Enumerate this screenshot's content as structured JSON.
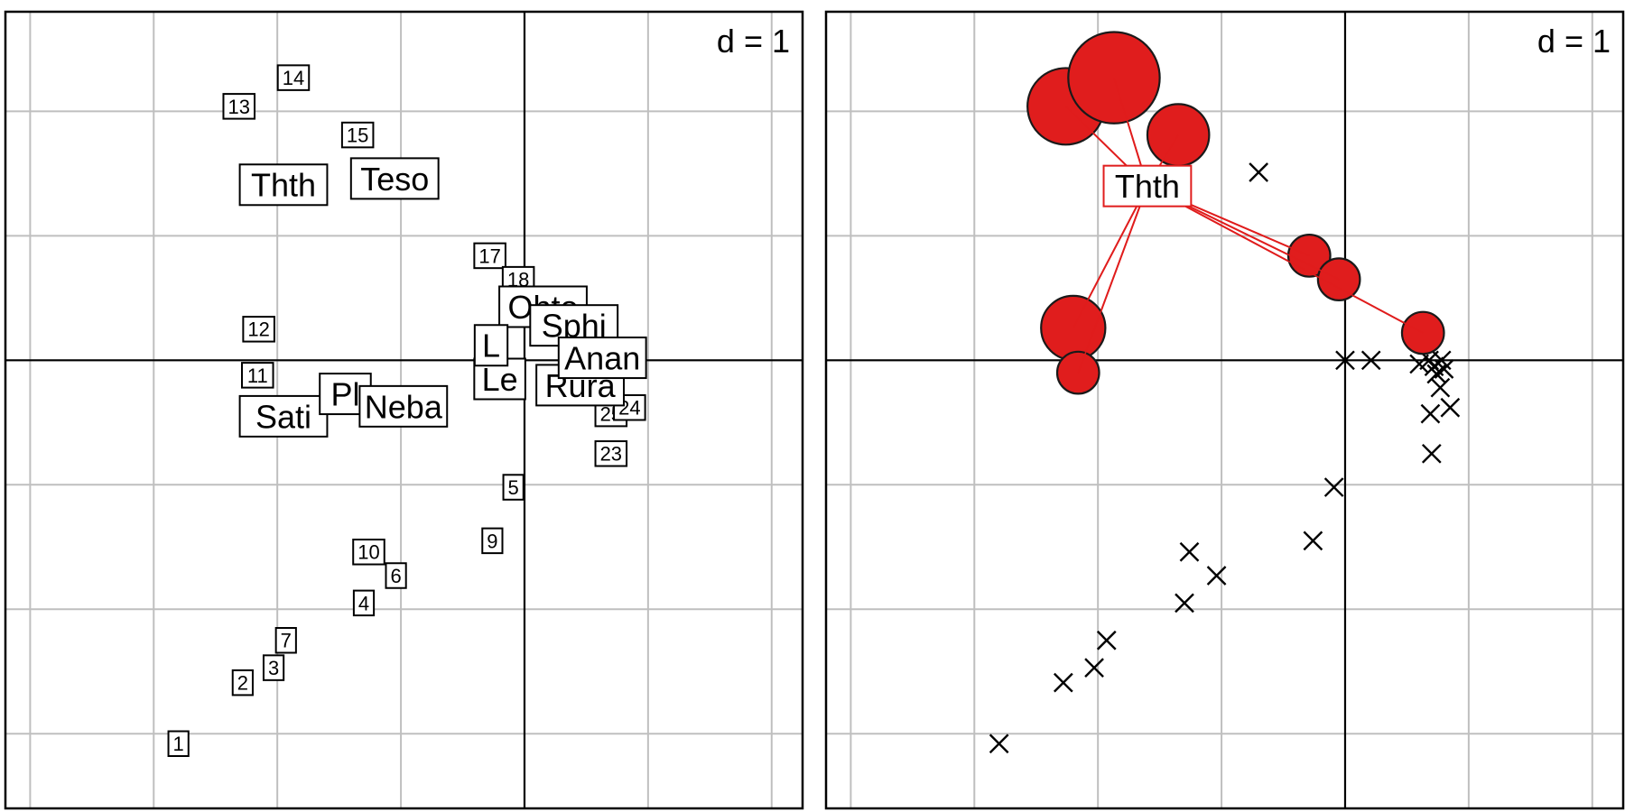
{
  "chart_data": [
    {
      "type": "scatter",
      "panel": "left",
      "scale_label": "d = 1",
      "grid": true,
      "axes_at_origin": true,
      "xlim": [
        -4.2,
        2.25
      ],
      "ylim": [
        -3.6,
        2.8
      ],
      "grid_step": 1,
      "sites": [
        {
          "label": "1",
          "x": -2.8,
          "y": -3.08
        },
        {
          "label": "2",
          "x": -2.28,
          "y": -2.59
        },
        {
          "label": "3",
          "x": -2.03,
          "y": -2.47
        },
        {
          "label": "7",
          "x": -1.93,
          "y": -2.25
        },
        {
          "label": "4",
          "x": -1.3,
          "y": -1.95
        },
        {
          "label": "6",
          "x": -1.04,
          "y": -1.73
        },
        {
          "label": "10",
          "x": -1.26,
          "y": -1.54
        },
        {
          "label": "9",
          "x": -0.26,
          "y": -1.45
        },
        {
          "label": "5",
          "x": -0.09,
          "y": -1.02
        },
        {
          "label": "11",
          "x": -2.16,
          "y": -0.12
        },
        {
          "label": "12",
          "x": -2.15,
          "y": 0.25
        },
        {
          "label": "13",
          "x": -2.31,
          "y": 2.04
        },
        {
          "label": "14",
          "x": -1.87,
          "y": 2.27
        },
        {
          "label": "15",
          "x": -1.35,
          "y": 1.81
        },
        {
          "label": "17",
          "x": -0.28,
          "y": 0.84
        },
        {
          "label": "18",
          "x": -0.05,
          "y": 0.65
        },
        {
          "label": "23",
          "x": 0.7,
          "y": -0.75
        },
        {
          "label": "25",
          "x": 0.7,
          "y": -0.43
        },
        {
          "label": "24",
          "x": 0.85,
          "y": -0.38
        }
      ],
      "species": [
        {
          "label": "Thth",
          "x": -1.95,
          "y": 1.41
        },
        {
          "label": "Teso",
          "x": -1.05,
          "y": 1.46
        },
        {
          "label": "Sati",
          "x": -1.95,
          "y": -0.45
        },
        {
          "label": "Pl",
          "x": -1.45,
          "y": -0.27
        },
        {
          "label": "Neba",
          "x": -0.98,
          "y": -0.37
        },
        {
          "label": "Ohto",
          "x": 0.15,
          "y": 0.43
        },
        {
          "label": "Sphi",
          "x": 0.4,
          "y": 0.28
        },
        {
          "label": "Le",
          "x": -0.2,
          "y": -0.15
        },
        {
          "label": "L",
          "x": -0.27,
          "y": 0.12
        },
        {
          "label": "Rura",
          "x": 0.45,
          "y": -0.2
        },
        {
          "label": "Anan",
          "x": 0.63,
          "y": 0.02
        }
      ]
    },
    {
      "type": "scatter",
      "panel": "right",
      "scale_label": "d = 1",
      "grid": true,
      "axes_at_origin": true,
      "xlim": [
        -4.2,
        2.25
      ],
      "ylim": [
        -3.6,
        2.8
      ],
      "grid_step": 1,
      "highlighted_species": "Thth",
      "centroid": {
        "label": "Thth",
        "x": -1.6,
        "y": 1.4
      },
      "occupied_sites": [
        {
          "x": -2.26,
          "y": 2.04,
          "r": 0.31
        },
        {
          "x": -1.87,
          "y": 2.27,
          "r": 0.37
        },
        {
          "x": -1.35,
          "y": 1.81,
          "r": 0.25
        },
        {
          "x": -2.2,
          "y": 0.26,
          "r": 0.26
        },
        {
          "x": -2.16,
          "y": -0.1,
          "r": 0.17
        },
        {
          "x": -0.29,
          "y": 0.84,
          "r": 0.17
        },
        {
          "x": -0.05,
          "y": 0.65,
          "r": 0.17
        },
        {
          "x": 0.63,
          "y": 0.22,
          "r": 0.17
        }
      ],
      "sites": [
        {
          "x": -2.8,
          "y": -3.08
        },
        {
          "x": -2.28,
          "y": -2.59
        },
        {
          "x": -2.03,
          "y": -2.47
        },
        {
          "x": -1.93,
          "y": -2.25
        },
        {
          "x": -1.3,
          "y": -1.95
        },
        {
          "x": -1.04,
          "y": -1.73
        },
        {
          "x": -1.26,
          "y": -1.54
        },
        {
          "x": -0.26,
          "y": -1.45
        },
        {
          "x": -0.09,
          "y": -1.02
        },
        {
          "x": -0.7,
          "y": 1.51
        },
        {
          "x": 0.0,
          "y": 0.0
        },
        {
          "x": 0.21,
          "y": 0.0
        },
        {
          "x": 0.6,
          "y": -0.03
        },
        {
          "x": 0.68,
          "y": 0.0
        },
        {
          "x": 0.72,
          "y": -0.05
        },
        {
          "x": 0.78,
          "y": 0.0
        },
        {
          "x": 0.8,
          "y": -0.07
        },
        {
          "x": 0.74,
          "y": -0.11
        },
        {
          "x": 0.77,
          "y": -0.22
        },
        {
          "x": 0.69,
          "y": -0.43
        },
        {
          "x": 0.85,
          "y": -0.38
        },
        {
          "x": 0.7,
          "y": -0.75
        }
      ]
    }
  ],
  "colors": {
    "axis": "#000000",
    "grid": "#bfbfbf",
    "frame": "#000000",
    "highlight": "#e01d1d",
    "highlight_line": "#e01d1d",
    "circle_stroke": "#1a1a1a"
  }
}
